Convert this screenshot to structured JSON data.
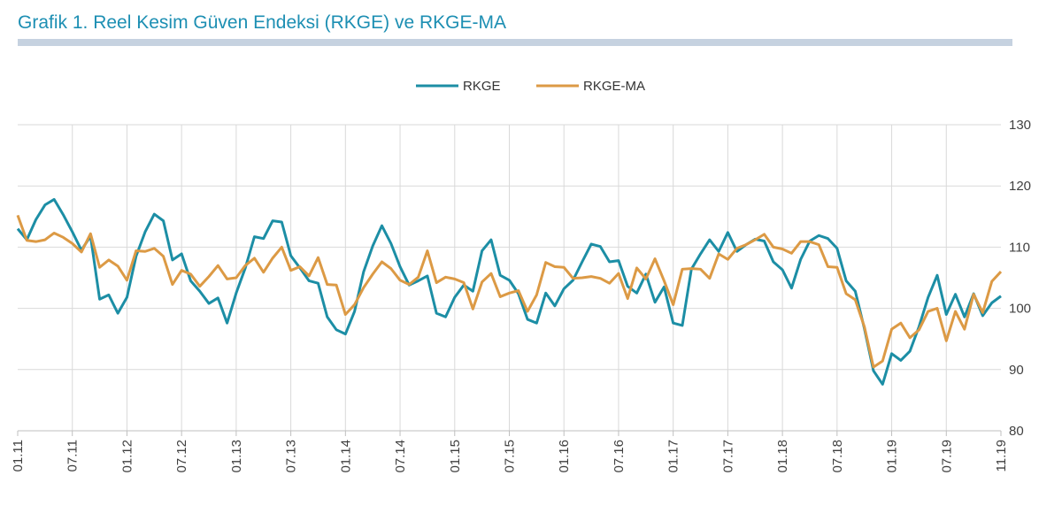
{
  "title": "Grafik 1. Reel Kesim Güven Endeksi (RKGE) ve RKGE-MA",
  "colors": {
    "title": "#1d8fb3",
    "rule": "#c6d2e0",
    "rkge": "#1c8ea5",
    "rkge_ma": "#dc9a45",
    "grid": "#d9d9d9"
  },
  "chart_data": {
    "type": "line",
    "title": "Grafik 1. Reel Kesim Güven Endeksi (RKGE) ve RKGE-MA",
    "xlabel": "",
    "ylabel": "",
    "ylim": [
      80,
      130
    ],
    "yticks": [
      80,
      90,
      100,
      110,
      120,
      130
    ],
    "y_axis_side": "right",
    "grid": true,
    "legend_position": "top-center",
    "x_start": "01.11",
    "x_tick_labels": [
      "01.11",
      "07.11",
      "01.12",
      "07.12",
      "01.13",
      "07.13",
      "01.14",
      "07.14",
      "01.15",
      "07.15",
      "01.16",
      "07.16",
      "01.17",
      "07.17",
      "01.18",
      "07.18",
      "01.19",
      "07.19",
      "11.19"
    ],
    "series": [
      {
        "name": "RKGE",
        "color": "#1c8ea5",
        "values": [
          113.0,
          111.2,
          114.5,
          116.9,
          117.8,
          115.3,
          112.5,
          109.5,
          111.8,
          101.5,
          102.2,
          99.2,
          101.8,
          108.5,
          112.5,
          115.4,
          114.3,
          107.9,
          108.9,
          104.5,
          102.8,
          100.8,
          101.7,
          97.6,
          102.5,
          106.6,
          111.7,
          111.4,
          114.3,
          114.1,
          108.6,
          106.6,
          104.5,
          104.1,
          98.6,
          96.5,
          95.8,
          99.5,
          106.0,
          110.2,
          113.5,
          110.6,
          106.8,
          103.8,
          104.5,
          105.3,
          99.2,
          98.6,
          101.8,
          103.8,
          102.8,
          109.4,
          111.2,
          105.4,
          104.6,
          102.4,
          98.2,
          97.6,
          102.5,
          100.4,
          103.2,
          104.6,
          107.6,
          110.5,
          110.1,
          107.6,
          107.8,
          103.6,
          102.5,
          105.6,
          101.0,
          103.5,
          97.6,
          97.2,
          106.4,
          108.9,
          111.2,
          109.3,
          112.4,
          109.3,
          110.4,
          111.3,
          111.0,
          107.6,
          106.3,
          103.3,
          108.0,
          111.0,
          111.9,
          111.4,
          109.8,
          104.5,
          102.8,
          96.7,
          89.8,
          87.6,
          92.6,
          91.5,
          93.0,
          97.0,
          101.8,
          105.4,
          99.0,
          102.3,
          98.6,
          102.4,
          98.8,
          100.9,
          102.0
        ]
      },
      {
        "name": "RKGE-MA",
        "color": "#dc9a45",
        "values": [
          115.2,
          111.1,
          110.9,
          111.2,
          112.3,
          111.6,
          110.6,
          109.2,
          112.2,
          106.7,
          107.9,
          106.9,
          104.6,
          109.4,
          109.3,
          109.8,
          108.5,
          103.9,
          106.2,
          105.6,
          103.6,
          105.2,
          107.0,
          104.8,
          105.0,
          107.0,
          108.2,
          105.9,
          108.2,
          110.0,
          106.2,
          106.8,
          105.3,
          108.3,
          103.9,
          103.8,
          99.0,
          100.6,
          103.4,
          105.6,
          107.6,
          106.5,
          104.6,
          103.9,
          105.1,
          109.4,
          104.2,
          105.1,
          104.8,
          104.2,
          99.9,
          104.3,
          105.7,
          101.9,
          102.5,
          102.9,
          99.5,
          102.2,
          107.5,
          106.8,
          106.7,
          104.9,
          105.0,
          105.2,
          104.9,
          104.1,
          105.7,
          101.6,
          106.6,
          104.8,
          108.1,
          104.5,
          100.6,
          106.4,
          106.5,
          106.4,
          104.9,
          108.9,
          108.0,
          109.8,
          110.4,
          111.2,
          112.1,
          110.0,
          109.7,
          109.0,
          110.9,
          110.9,
          110.4,
          106.8,
          106.7,
          102.4,
          101.4,
          97.0,
          90.4,
          91.4,
          96.6,
          97.6,
          95.2,
          96.5,
          99.5,
          100.0,
          94.7,
          99.5,
          96.6,
          102.3,
          99.3,
          104.4,
          106.0
        ]
      }
    ]
  }
}
